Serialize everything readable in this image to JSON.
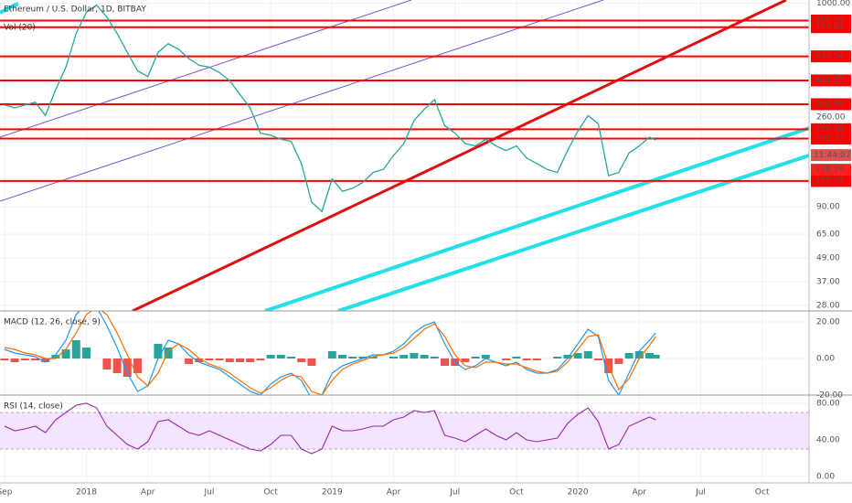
{
  "chart_data": [
    {
      "type": "line",
      "title": "Ethereum / U.S. Dollar, 1D, BITBAY",
      "indicator": "Vol (20)",
      "log_scale": true,
      "grid": true,
      "xlim": [
        -0.22,
        39.29
      ],
      "ylim": [
        26.2,
        1040
      ],
      "yticks": [
        {
          "value": 1000,
          "label": "1000.00"
        },
        {
          "value": 260,
          "label": "260.00"
        },
        {
          "value": 90,
          "label": "90.00"
        },
        {
          "value": 65,
          "label": "65.00"
        },
        {
          "value": 49,
          "label": "49.00"
        },
        {
          "value": 37,
          "label": "37.00"
        },
        {
          "value": 28,
          "label": "28.00"
        }
      ],
      "levels": [
        815.36,
        753.61,
        533.54,
        401.25,
        302.85,
        225.09,
        201.77,
        122.07
      ],
      "level_color": "#ff0000",
      "countdown": "11:44:07",
      "last_price": 198.26,
      "color": "#26a69a",
      "x": [
        0,
        0.5,
        1,
        1.5,
        2,
        2.5,
        3,
        3.5,
        4,
        4.5,
        5,
        5.5,
        6,
        6.5,
        7,
        7.5,
        8,
        8.5,
        9,
        9.5,
        10,
        10.5,
        11,
        11.5,
        12,
        12.5,
        13,
        13.5,
        14,
        14.5,
        15,
        15.5,
        16,
        16.5,
        17,
        17.5,
        18,
        18.5,
        19,
        19.5,
        20,
        20.5,
        21,
        21.5,
        22,
        22.5,
        23,
        23.5,
        24,
        24.5,
        25,
        25.5,
        26,
        26.5,
        27,
        27.5,
        28,
        28.5,
        29,
        29.5,
        30,
        30.5,
        31,
        31.5,
        31.8
      ],
      "values": [
        300,
        290,
        300,
        310,
        265,
        360,
        470,
        700,
        900,
        980,
        850,
        700,
        560,
        450,
        420,
        560,
        620,
        580,
        520,
        480,
        470,
        440,
        400,
        340,
        290,
        215,
        210,
        200,
        195,
        150,
        95,
        85,
        125,
        108,
        112,
        120,
        135,
        140,
        165,
        190,
        250,
        285,
        320,
        235,
        215,
        190,
        185,
        200,
        185,
        175,
        185,
        160,
        150,
        140,
        135,
        175,
        220,
        265,
        240,
        130,
        135,
        170,
        185,
        205,
        198
      ]
    },
    {
      "type": "macd",
      "title": "MACD (12, 26, close, 9)",
      "grid": true,
      "xlim": [
        -0.22,
        39.29
      ],
      "ylim": [
        -20,
        26
      ],
      "yticks": [
        {
          "value": 20,
          "label": "20.00"
        },
        {
          "value": 0,
          "label": "0.00"
        },
        {
          "value": -20,
          "label": "-20.00"
        }
      ],
      "x": [
        0,
        0.5,
        1,
        1.5,
        2,
        2.5,
        3,
        3.5,
        4,
        4.5,
        5,
        5.5,
        6,
        6.5,
        7,
        7.5,
        8,
        8.5,
        9,
        9.5,
        10,
        10.5,
        11,
        11.5,
        12,
        12.5,
        13,
        13.5,
        14,
        14.5,
        15,
        15.5,
        16,
        16.5,
        17,
        17.5,
        18,
        18.5,
        19,
        19.5,
        20,
        20.5,
        21,
        21.5,
        22,
        22.5,
        23,
        23.5,
        24,
        24.5,
        25,
        25.5,
        26,
        26.5,
        27,
        27.5,
        28,
        28.5,
        29,
        29.5,
        30,
        30.5,
        31,
        31.5,
        31.8
      ],
      "series": [
        {
          "style": "histogram",
          "colors": [
            "#26a69a",
            "#ef5350"
          ],
          "values": [
            -1,
            -2,
            -1,
            -1,
            -2,
            2,
            5,
            10,
            6,
            0,
            -6,
            -8,
            -10,
            -8,
            0,
            8,
            6,
            0,
            -3,
            -2,
            -1,
            -1,
            -2,
            -2,
            -2,
            -1,
            2,
            2,
            1,
            -2,
            -4,
            0,
            4,
            2,
            1,
            1,
            1,
            0,
            1,
            2,
            3,
            2,
            1,
            -4,
            -4,
            -2,
            1,
            2,
            0,
            -1,
            1,
            -1,
            -1,
            0,
            1,
            2,
            3,
            4,
            -1,
            -8,
            -3,
            3,
            4,
            3,
            2
          ]
        },
        {
          "style": "line",
          "color": "#2196f3",
          "values": [
            5,
            3,
            2,
            1,
            -2,
            2,
            10,
            24,
            30,
            28,
            18,
            6,
            -8,
            -18,
            -15,
            0,
            10,
            8,
            2,
            -2,
            -4,
            -6,
            -10,
            -14,
            -18,
            -20,
            -14,
            -10,
            -8,
            -12,
            -22,
            -20,
            -8,
            -4,
            -2,
            0,
            2,
            2,
            4,
            8,
            14,
            18,
            20,
            8,
            -2,
            -6,
            -4,
            0,
            -2,
            -4,
            -2,
            -6,
            -8,
            -8,
            -6,
            0,
            8,
            16,
            12,
            -12,
            -20,
            -8,
            4,
            10,
            14
          ]
        },
        {
          "style": "line",
          "color": "#ff6d00",
          "values": [
            6,
            5,
            3,
            2,
            0,
            0,
            5,
            14,
            24,
            28,
            24,
            14,
            2,
            -10,
            -15,
            -8,
            4,
            8,
            5,
            0,
            -3,
            -5,
            -8,
            -12,
            -16,
            -19,
            -16,
            -12,
            -9,
            -10,
            -18,
            -20,
            -12,
            -6,
            -3,
            -1,
            1,
            2,
            3,
            6,
            11,
            16,
            19,
            12,
            2,
            -4,
            -5,
            -2,
            -2,
            -3,
            -3,
            -5,
            -7,
            -8,
            -7,
            -2,
            5,
            12,
            13,
            -4,
            -17,
            -11,
            0,
            7,
            12
          ]
        }
      ]
    },
    {
      "type": "rsi",
      "title": "RSI (14, close)",
      "grid": true,
      "color": "#9c27b0",
      "band": [
        30,
        70
      ],
      "band_color": "#f3e5ff",
      "xlim": [
        -0.22,
        39.29
      ],
      "ylim": [
        -7,
        89
      ],
      "yticks": [
        {
          "value": 80,
          "label": "80.00"
        },
        {
          "value": 40,
          "label": "40.00"
        },
        {
          "value": 0,
          "label": "0.00"
        }
      ],
      "xticks": [
        {
          "value": 0,
          "label": "Sep"
        },
        {
          "value": 4,
          "label": "2018"
        },
        {
          "value": 7,
          "label": "Apr"
        },
        {
          "value": 10,
          "label": "Jul"
        },
        {
          "value": 13,
          "label": "Oct"
        },
        {
          "value": 16,
          "label": "2019"
        },
        {
          "value": 19,
          "label": "Apr"
        },
        {
          "value": 22,
          "label": "Jul"
        },
        {
          "value": 25,
          "label": "Oct"
        },
        {
          "value": 28,
          "label": "2020"
        },
        {
          "value": 31,
          "label": "Apr"
        },
        {
          "value": 34,
          "label": "Jul"
        },
        {
          "value": 37,
          "label": "Oct"
        }
      ],
      "x": [
        0,
        0.5,
        1,
        1.5,
        2,
        2.5,
        3,
        3.5,
        4,
        4.5,
        5,
        5.5,
        6,
        6.5,
        7,
        7.5,
        8,
        8.5,
        9,
        9.5,
        10,
        10.5,
        11,
        11.5,
        12,
        12.5,
        13,
        13.5,
        14,
        14.5,
        15,
        15.5,
        16,
        16.5,
        17,
        17.5,
        18,
        18.5,
        19,
        19.5,
        20,
        20.5,
        21,
        21.5,
        22,
        22.5,
        23,
        23.5,
        24,
        24.5,
        25,
        25.5,
        26,
        26.5,
        27,
        27.5,
        28,
        28.5,
        29,
        29.5,
        30,
        30.5,
        31,
        31.5,
        31.8
      ],
      "values": [
        55,
        50,
        52,
        55,
        48,
        62,
        70,
        78,
        80,
        75,
        55,
        45,
        35,
        30,
        38,
        60,
        62,
        55,
        48,
        45,
        50,
        45,
        40,
        35,
        30,
        28,
        35,
        45,
        45,
        30,
        25,
        30,
        55,
        50,
        50,
        52,
        55,
        55,
        62,
        65,
        72,
        70,
        72,
        45,
        42,
        38,
        45,
        52,
        45,
        40,
        48,
        40,
        38,
        40,
        42,
        58,
        68,
        75,
        60,
        30,
        35,
        55,
        60,
        65,
        62
      ]
    }
  ]
}
